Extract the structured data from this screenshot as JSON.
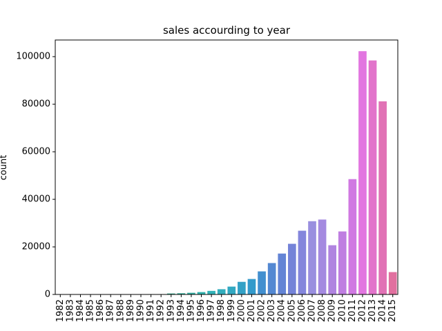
{
  "chart_data": {
    "type": "bar",
    "title": "sales accourding to year",
    "xlabel": "",
    "ylabel": "count",
    "ylim": [
      0,
      107000
    ],
    "yticks": [
      0,
      20000,
      40000,
      60000,
      80000,
      100000
    ],
    "ytick_labels": [
      "0",
      "20000",
      "40000",
      "60000",
      "80000",
      "100000"
    ],
    "grid": false,
    "legend": "none",
    "categories": [
      "1982",
      "1983",
      "1984",
      "1985",
      "1986",
      "1987",
      "1988",
      "1989",
      "1990",
      "1991",
      "1992",
      "1993",
      "1994",
      "1995",
      "1996",
      "1997",
      "1998",
      "1999",
      "2000",
      "2001",
      "2002",
      "2003",
      "2004",
      "2005",
      "2006",
      "2007",
      "2008",
      "2009",
      "2010",
      "2011",
      "2012",
      "2013",
      "2014",
      "2015"
    ],
    "values": [
      100,
      100,
      100,
      100,
      100,
      100,
      100,
      100,
      100,
      150,
      150,
      400,
      500,
      700,
      1000,
      1500,
      2200,
      3300,
      5300,
      6500,
      9700,
      13200,
      17200,
      21300,
      26800,
      30800,
      31500,
      20700,
      26500,
      48500,
      102300,
      98400,
      81200,
      9400
    ]
  }
}
